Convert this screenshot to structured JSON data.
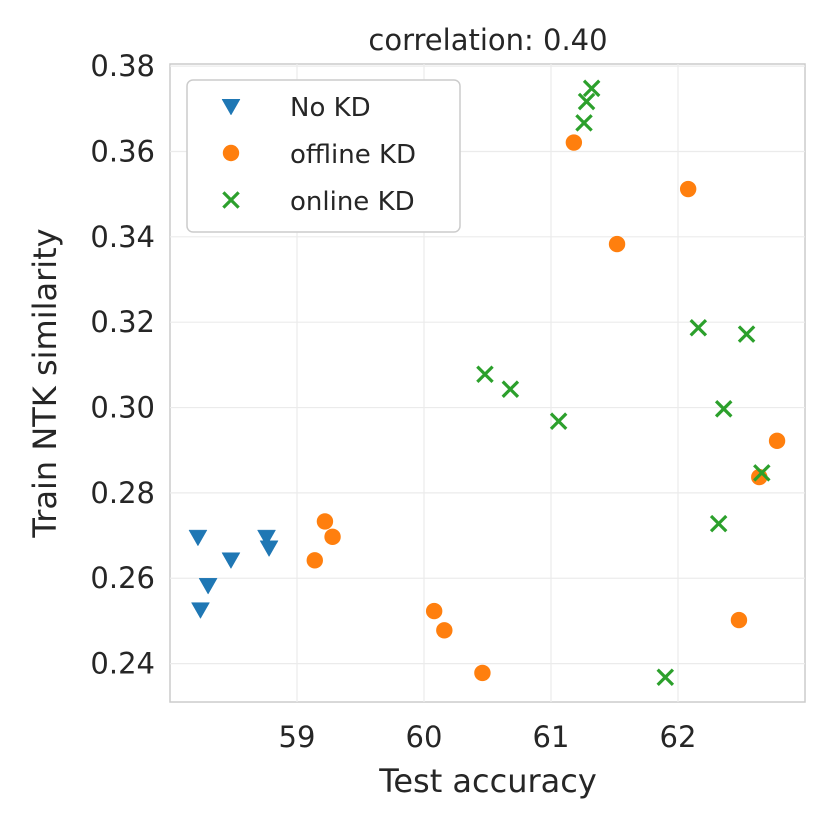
{
  "chart_data": {
    "type": "scatter",
    "title": "correlation: 0.40",
    "xlabel": "Test accuracy",
    "ylabel": "Train NTK similarity",
    "xlim": [
      58.0,
      63.0
    ],
    "ylim": [
      0.231,
      0.3805
    ],
    "x_ticks": [
      59,
      60,
      61,
      62
    ],
    "x_tick_labels": [
      "59",
      "60",
      "61",
      "62"
    ],
    "y_ticks": [
      0.24,
      0.26,
      0.28,
      0.3,
      0.32,
      0.34,
      0.36,
      0.38
    ],
    "y_tick_labels": [
      "0.24",
      "0.26",
      "0.28",
      "0.30",
      "0.32",
      "0.34",
      "0.36",
      "0.38"
    ],
    "grid": true,
    "legend_position": "top-left",
    "series": [
      {
        "name": "No KD",
        "marker": "triangle-down",
        "color": "#1f77b4",
        "points": [
          [
            58.22,
            0.2697
          ],
          [
            58.3,
            0.2584
          ],
          [
            58.48,
            0.2644
          ],
          [
            58.24,
            0.2527
          ],
          [
            58.76,
            0.2697
          ],
          [
            58.78,
            0.2672
          ]
        ]
      },
      {
        "name": "offline KD",
        "marker": "circle",
        "color": "#ff7f0e",
        "points": [
          [
            59.22,
            0.2733
          ],
          [
            59.28,
            0.2697
          ],
          [
            59.14,
            0.2642
          ],
          [
            60.08,
            0.2523
          ],
          [
            60.16,
            0.2478
          ],
          [
            60.46,
            0.2378
          ],
          [
            61.18,
            0.3621
          ],
          [
            62.08,
            0.3512
          ],
          [
            61.52,
            0.3383
          ],
          [
            62.78,
            0.2922
          ],
          [
            62.64,
            0.2837
          ],
          [
            62.48,
            0.2502
          ]
        ]
      },
      {
        "name": "online KD",
        "marker": "x",
        "color": "#2ca02c",
        "points": [
          [
            61.32,
            0.3748
          ],
          [
            61.28,
            0.3717
          ],
          [
            61.26,
            0.3667
          ],
          [
            60.48,
            0.3078
          ],
          [
            60.68,
            0.3043
          ],
          [
            61.06,
            0.2968
          ],
          [
            62.16,
            0.3187
          ],
          [
            62.54,
            0.3172
          ],
          [
            62.36,
            0.2997
          ],
          [
            62.66,
            0.2847
          ],
          [
            62.32,
            0.2728
          ],
          [
            61.9,
            0.2368
          ]
        ]
      }
    ]
  }
}
